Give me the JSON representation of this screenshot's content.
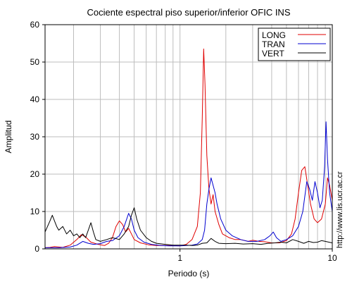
{
  "chart_data": {
    "type": "line",
    "title": "Cociente espectral piso superior/inferior  OFIC INS",
    "xlabel": "Periodo (s)",
    "ylabel": "Amplitud",
    "x_scale": "log",
    "xlim": [
      0.13,
      10
    ],
    "ylim": [
      0,
      60
    ],
    "yticks": [
      0,
      10,
      20,
      30,
      40,
      50,
      60
    ],
    "xtick_labels": [
      {
        "value": 1,
        "label": "1"
      },
      {
        "value": 10,
        "label": "10"
      }
    ],
    "grid": true,
    "legend_position": "top-right",
    "series": [
      {
        "name": "LONG",
        "color": "#e00000",
        "points": [
          [
            0.13,
            0.3
          ],
          [
            0.14,
            0.4
          ],
          [
            0.15,
            0.6
          ],
          [
            0.17,
            0.4
          ],
          [
            0.19,
            1.0
          ],
          [
            0.21,
            2.5
          ],
          [
            0.225,
            3.8
          ],
          [
            0.24,
            3.2
          ],
          [
            0.26,
            1.8
          ],
          [
            0.29,
            1.2
          ],
          [
            0.32,
            0.9
          ],
          [
            0.34,
            1.5
          ],
          [
            0.36,
            3.0
          ],
          [
            0.38,
            6.0
          ],
          [
            0.4,
            7.5
          ],
          [
            0.42,
            6.5
          ],
          [
            0.44,
            4.5
          ],
          [
            0.46,
            5.5
          ],
          [
            0.48,
            4.0
          ],
          [
            0.5,
            2.5
          ],
          [
            0.55,
            1.6
          ],
          [
            0.62,
            1.1
          ],
          [
            0.7,
            0.9
          ],
          [
            0.8,
            0.9
          ],
          [
            0.9,
            0.9
          ],
          [
            1.0,
            0.8
          ],
          [
            1.1,
            1.2
          ],
          [
            1.2,
            2.5
          ],
          [
            1.3,
            6.0
          ],
          [
            1.36,
            15.0
          ],
          [
            1.4,
            35.0
          ],
          [
            1.43,
            53.5
          ],
          [
            1.46,
            44.0
          ],
          [
            1.5,
            25.0
          ],
          [
            1.55,
            16.0
          ],
          [
            1.6,
            12.0
          ],
          [
            1.65,
            14.5
          ],
          [
            1.7,
            10.0
          ],
          [
            1.8,
            6.5
          ],
          [
            1.9,
            4.0
          ],
          [
            2.1,
            3.0
          ],
          [
            2.3,
            2.5
          ],
          [
            2.5,
            2.5
          ],
          [
            2.8,
            2.0
          ],
          [
            3.0,
            2.3
          ],
          [
            3.3,
            2.0
          ],
          [
            3.6,
            1.9
          ],
          [
            4.0,
            1.6
          ],
          [
            4.5,
            1.6
          ],
          [
            5.0,
            2.2
          ],
          [
            5.4,
            4.0
          ],
          [
            5.7,
            8.0
          ],
          [
            6.0,
            15.0
          ],
          [
            6.3,
            21.0
          ],
          [
            6.6,
            22.0
          ],
          [
            6.9,
            17.0
          ],
          [
            7.2,
            12.0
          ],
          [
            7.6,
            8.0
          ],
          [
            8.0,
            7.0
          ],
          [
            8.5,
            8.0
          ],
          [
            9.0,
            12.0
          ],
          [
            9.3,
            19.0
          ],
          [
            9.6,
            17.0
          ],
          [
            10.0,
            13.0
          ]
        ]
      },
      {
        "name": "TRAN",
        "color": "#0000d0",
        "points": [
          [
            0.13,
            0.3
          ],
          [
            0.16,
            0.3
          ],
          [
            0.19,
            0.5
          ],
          [
            0.21,
            1.0
          ],
          [
            0.23,
            2.0
          ],
          [
            0.25,
            1.5
          ],
          [
            0.27,
            1.2
          ],
          [
            0.3,
            1.4
          ],
          [
            0.33,
            2.0
          ],
          [
            0.36,
            2.2
          ],
          [
            0.4,
            3.5
          ],
          [
            0.43,
            6.0
          ],
          [
            0.46,
            9.5
          ],
          [
            0.48,
            8.0
          ],
          [
            0.5,
            5.0
          ],
          [
            0.53,
            3.0
          ],
          [
            0.58,
            1.8
          ],
          [
            0.65,
            1.2
          ],
          [
            0.75,
            0.9
          ],
          [
            0.85,
            0.8
          ],
          [
            1.0,
            0.8
          ],
          [
            1.1,
            0.9
          ],
          [
            1.2,
            1.0
          ],
          [
            1.3,
            1.3
          ],
          [
            1.4,
            2.5
          ],
          [
            1.45,
            5.0
          ],
          [
            1.5,
            12.0
          ],
          [
            1.55,
            16.0
          ],
          [
            1.6,
            19.0
          ],
          [
            1.65,
            17.0
          ],
          [
            1.7,
            15.0
          ],
          [
            1.75,
            12.0
          ],
          [
            1.85,
            8.0
          ],
          [
            2.0,
            5.0
          ],
          [
            2.2,
            3.5
          ],
          [
            2.5,
            2.5
          ],
          [
            2.8,
            2.0
          ],
          [
            3.2,
            2.0
          ],
          [
            3.6,
            2.5
          ],
          [
            3.9,
            3.5
          ],
          [
            4.1,
            4.5
          ],
          [
            4.3,
            3.0
          ],
          [
            4.6,
            2.0
          ],
          [
            5.0,
            2.5
          ],
          [
            5.5,
            3.5
          ],
          [
            6.0,
            6.0
          ],
          [
            6.4,
            10.0
          ],
          [
            6.8,
            18.0
          ],
          [
            7.1,
            16.0
          ],
          [
            7.4,
            13.0
          ],
          [
            7.7,
            18.0
          ],
          [
            8.0,
            15.0
          ],
          [
            8.3,
            11.0
          ],
          [
            8.6,
            13.0
          ],
          [
            8.9,
            22.0
          ],
          [
            9.1,
            34.0
          ],
          [
            9.3,
            24.0
          ],
          [
            9.6,
            15.0
          ],
          [
            10.0,
            10.0
          ]
        ]
      },
      {
        "name": "VERT",
        "color": "#000000",
        "points": [
          [
            0.13,
            4.5
          ],
          [
            0.135,
            6.0
          ],
          [
            0.14,
            7.5
          ],
          [
            0.145,
            9.0
          ],
          [
            0.15,
            7.5
          ],
          [
            0.155,
            6.0
          ],
          [
            0.16,
            5.0
          ],
          [
            0.17,
            6.0
          ],
          [
            0.18,
            4.0
          ],
          [
            0.19,
            5.0
          ],
          [
            0.2,
            3.5
          ],
          [
            0.21,
            4.0
          ],
          [
            0.22,
            3.0
          ],
          [
            0.23,
            4.0
          ],
          [
            0.24,
            3.0
          ],
          [
            0.25,
            5.0
          ],
          [
            0.26,
            7.0
          ],
          [
            0.27,
            4.5
          ],
          [
            0.28,
            2.5
          ],
          [
            0.3,
            2.0
          ],
          [
            0.33,
            2.5
          ],
          [
            0.36,
            3.0
          ],
          [
            0.4,
            2.5
          ],
          [
            0.43,
            4.0
          ],
          [
            0.46,
            6.0
          ],
          [
            0.48,
            9.0
          ],
          [
            0.5,
            11.0
          ],
          [
            0.52,
            8.0
          ],
          [
            0.55,
            5.0
          ],
          [
            0.6,
            3.0
          ],
          [
            0.65,
            2.0
          ],
          [
            0.7,
            1.5
          ],
          [
            0.8,
            1.2
          ],
          [
            0.9,
            1.0
          ],
          [
            1.0,
            1.0
          ],
          [
            1.1,
            1.0
          ],
          [
            1.2,
            0.9
          ],
          [
            1.3,
            1.0
          ],
          [
            1.4,
            1.5
          ],
          [
            1.5,
            1.6
          ],
          [
            1.6,
            2.8
          ],
          [
            1.7,
            2.0
          ],
          [
            1.8,
            1.5
          ],
          [
            2.0,
            1.4
          ],
          [
            2.3,
            1.5
          ],
          [
            2.6,
            1.3
          ],
          [
            3.0,
            1.4
          ],
          [
            3.4,
            1.2
          ],
          [
            3.8,
            1.5
          ],
          [
            4.2,
            1.6
          ],
          [
            4.6,
            1.8
          ],
          [
            5.0,
            1.6
          ],
          [
            5.5,
            2.5
          ],
          [
            6.0,
            2.0
          ],
          [
            6.5,
            1.5
          ],
          [
            7.0,
            2.0
          ],
          [
            7.5,
            1.7
          ],
          [
            8.0,
            1.8
          ],
          [
            8.5,
            2.2
          ],
          [
            9.0,
            2.0
          ],
          [
            9.5,
            1.8
          ],
          [
            10.0,
            1.6
          ]
        ]
      }
    ]
  },
  "watermark": "http://www.lis.ucr.ac.cr"
}
